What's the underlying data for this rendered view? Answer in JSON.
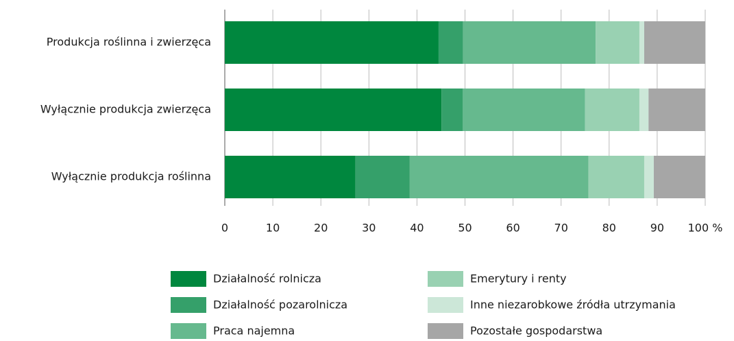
{
  "chart_data": {
    "type": "bar",
    "orientation": "horizontal",
    "stacked": true,
    "categories": [
      "Produkcja roślinna i zwierzęca",
      "Wyłącznie produkcja zwierzęca",
      "Wyłącznie produkcja roślinna"
    ],
    "series": [
      {
        "name": "Działalność rolnicza",
        "color": "#00873e",
        "values": [
          44.5,
          45.1,
          27.2
        ]
      },
      {
        "name": "Działalność pozarolnicza",
        "color": "#35a06a",
        "values": [
          5.1,
          4.4,
          11.3
        ]
      },
      {
        "name": "Praca najemna",
        "color": "#66b98e",
        "values": [
          27.6,
          25.5,
          37.2
        ]
      },
      {
        "name": "Emerytury i renty",
        "color": "#99d1b2",
        "values": [
          9.1,
          11.3,
          11.6
        ]
      },
      {
        "name": "Inne niezarobkowe źródła utrzymania",
        "color": "#cce7d8",
        "values": [
          1.0,
          1.9,
          2.0
        ]
      },
      {
        "name": "Pozostałe gospodarstwa",
        "color": "#a6a6a6",
        "values": [
          12.7,
          11.8,
          10.7
        ]
      }
    ],
    "xlim": [
      0,
      100
    ],
    "xticks": [
      0,
      10,
      20,
      30,
      40,
      50,
      60,
      70,
      80,
      90,
      {
        "value": 100,
        "label": "100 %"
      }
    ],
    "grid": true,
    "legend": "bottom"
  }
}
